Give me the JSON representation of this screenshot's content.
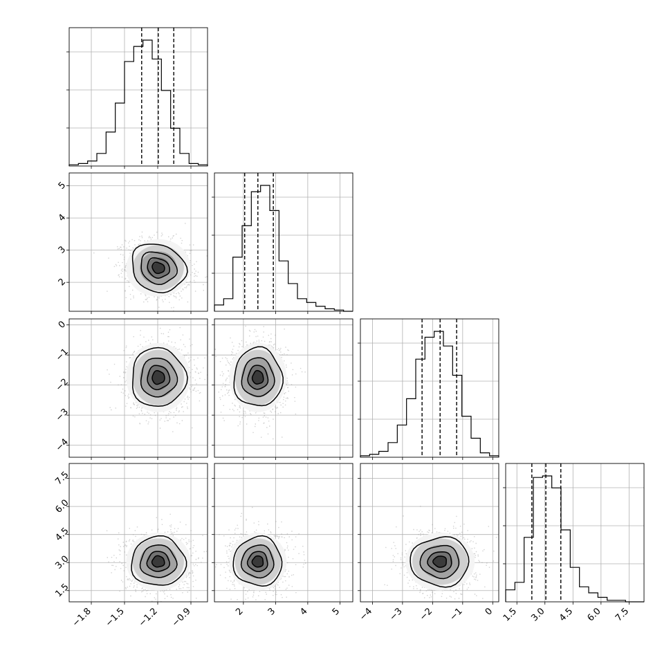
{
  "chart_data": {
    "type": "corner",
    "grid": true,
    "parameters": [
      {
        "ticks": [
          -1.8,
          -1.5,
          -1.2,
          -0.9
        ],
        "tick_labels": [
          "−1.8",
          "−1.5",
          "−1.2",
          "−0.9"
        ],
        "range": [
          -2.0,
          -0.75
        ],
        "quantiles": [
          -1.345,
          -1.195,
          -1.055
        ]
      },
      {
        "ticks": [
          2,
          3,
          4,
          5
        ],
        "tick_labels": [
          "2",
          "3",
          "4",
          "5"
        ],
        "range": [
          1.1,
          5.4
        ],
        "quantiles": [
          2.04,
          2.45,
          2.93
        ]
      },
      {
        "ticks": [
          -4,
          -3,
          -2,
          -1,
          0
        ],
        "tick_labels": [
          "−4",
          "−3",
          "−2",
          "−1",
          "0"
        ],
        "range": [
          -4.4,
          0.2
        ],
        "quantiles": [
          -2.35,
          -1.75,
          -1.2
        ]
      },
      {
        "ticks": [
          1.5,
          3.0,
          4.5,
          6.0,
          7.5
        ],
        "tick_labels": [
          "1.5",
          "3.0",
          "4.5",
          "6.0",
          "7.5"
        ],
        "range": [
          0.9,
          8.3
        ],
        "quantiles": [
          2.3,
          3.05,
          3.85
        ]
      }
    ],
    "histograms": [
      [
        1,
        2,
        4,
        10,
        27,
        50,
        83,
        95,
        100,
        85,
        60,
        30,
        10,
        2,
        1
      ],
      [
        5,
        10,
        43,
        68,
        95,
        100,
        80,
        40,
        22,
        10,
        7,
        4,
        2,
        1,
        0
      ],
      [
        1,
        2,
        4,
        10,
        22,
        40,
        67,
        82,
        86,
        76,
        56,
        28,
        13,
        3,
        1
      ],
      [
        8,
        13,
        43,
        83,
        84,
        76,
        48,
        23,
        10,
        6,
        3,
        1,
        1,
        0,
        0
      ]
    ],
    "correlations": [
      [
        1.0,
        -0.15,
        0.0,
        0.0
      ],
      [
        -0.15,
        1.0,
        0.0,
        0.0
      ],
      [
        0.0,
        0.0,
        1.0,
        0.0
      ],
      [
        0.0,
        0.0,
        0.0,
        1.0
      ]
    ]
  }
}
